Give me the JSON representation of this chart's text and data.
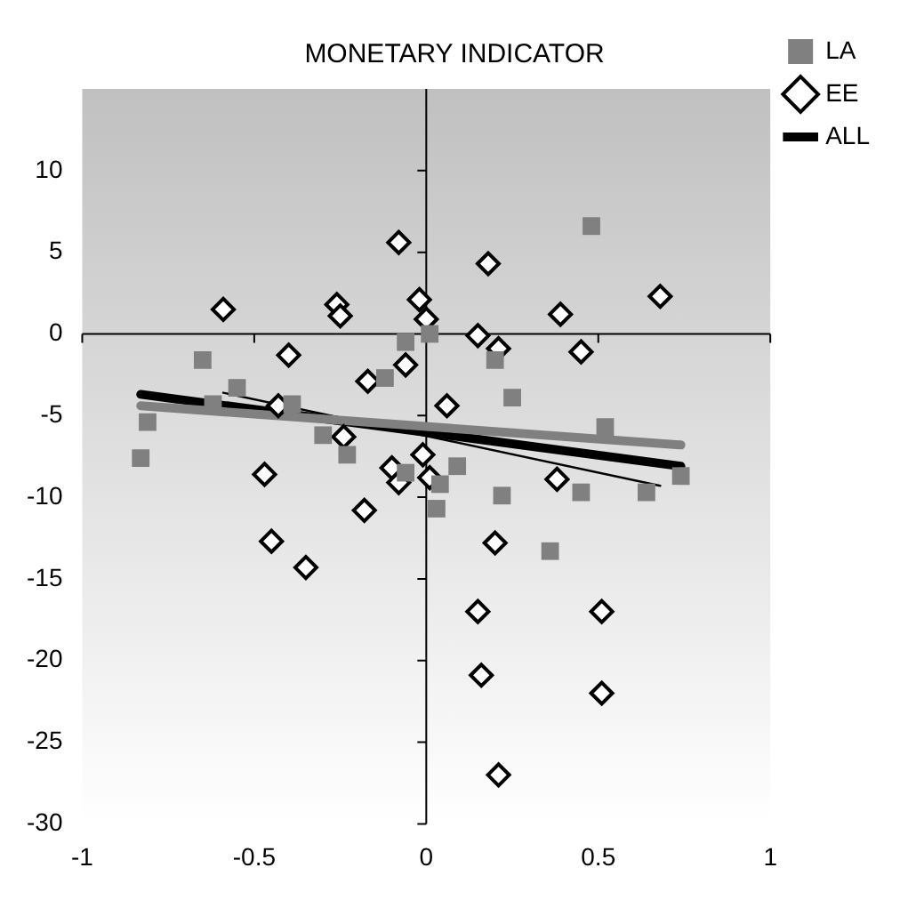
{
  "chart_data": {
    "type": "scatter",
    "title": "MONETARY INDICATOR",
    "xlim": [
      -1,
      1
    ],
    "ylim": [
      -30,
      15
    ],
    "xticks": [
      -1,
      -0.5,
      0,
      0.5,
      1
    ],
    "yticks": [
      -30,
      -25,
      -20,
      -15,
      -10,
      -5,
      0,
      5,
      10
    ],
    "legend": "top right",
    "series": [
      {
        "name": "LA",
        "type": "scatter",
        "marker": "square",
        "color": "#808080",
        "x": [
          -0.83,
          -0.81,
          -0.65,
          -0.62,
          -0.55,
          -0.39,
          -0.3,
          -0.23,
          -0.12,
          -0.06,
          -0.06,
          0.01,
          0.03,
          0.04,
          0.09,
          0.2,
          0.22,
          0.25,
          0.36,
          0.45,
          0.48,
          0.52,
          0.64,
          0.74
        ],
        "values": [
          -7.6,
          -5.4,
          -1.6,
          -4.3,
          -3.3,
          -4.3,
          -6.2,
          -7.4,
          -2.7,
          -0.5,
          -8.5,
          0,
          -10.7,
          -9.2,
          -8.1,
          -1.6,
          -9.9,
          -3.9,
          -13.3,
          -9.7,
          6.6,
          -5.7,
          -9.7,
          -8.7
        ]
      },
      {
        "name": "EE",
        "type": "scatter",
        "marker": "diamond",
        "color": "#ffffff",
        "x": [
          -0.59,
          -0.08,
          -0.26,
          -0.25,
          -0.02,
          0,
          -0.4,
          -0.06,
          -0.17,
          -0.43,
          -0.24,
          -0.47,
          -0.1,
          -0.08,
          -0.01,
          0.01,
          0.18,
          0.68,
          0.39,
          0.15,
          0.21,
          0.45,
          0.06,
          0.38,
          -0.45,
          -0.35,
          -0.18,
          0.2,
          0.15,
          0.51,
          0.16,
          0.51,
          0.21
        ],
        "values": [
          1.5,
          5.6,
          1.8,
          1.1,
          2.1,
          0.9,
          -1.3,
          -1.9,
          -2.9,
          -4.4,
          -6.3,
          -8.6,
          -8.2,
          -9.1,
          -7.4,
          -8.8,
          4.3,
          2.3,
          1.2,
          -0.1,
          -0.9,
          -1.1,
          -4.4,
          -8.9,
          -12.7,
          -14.3,
          -10.8,
          -12.8,
          -17,
          -17,
          -20.9,
          -22,
          -27
        ]
      },
      {
        "type": "line",
        "marker": "none",
        "color": "#808080",
        "x": [
          -0.83,
          0.74
        ],
        "values": [
          -4.4,
          -6.8
        ]
      },
      {
        "type": "line",
        "marker": "none",
        "color": "#000000",
        "x": [
          -0.59,
          0.68
        ],
        "values": [
          -3.6,
          -9.3
        ]
      },
      {
        "name": "ALL",
        "type": "line",
        "marker": "none",
        "color": "#000000",
        "x": [
          -0.83,
          0.74
        ],
        "values": [
          -3.7,
          -8.1
        ]
      }
    ]
  }
}
